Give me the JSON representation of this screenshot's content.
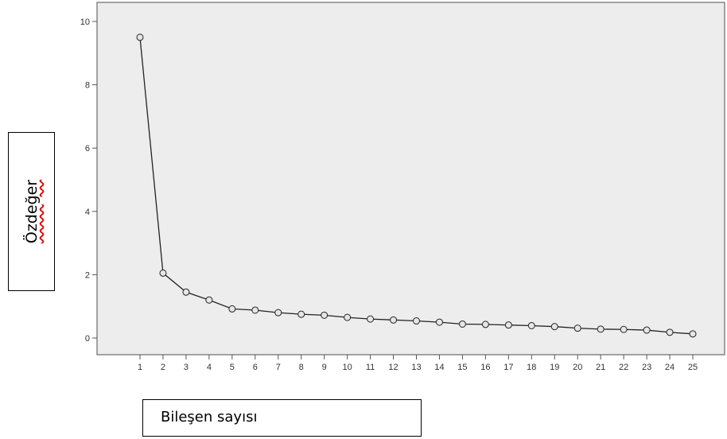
{
  "chart_data": {
    "type": "line",
    "ylabel": "Özdeğer",
    "xlabel": "Bileşen sayısı",
    "x": [
      1,
      2,
      3,
      4,
      5,
      6,
      7,
      8,
      9,
      10,
      11,
      12,
      13,
      14,
      15,
      16,
      17,
      18,
      19,
      20,
      21,
      22,
      23,
      24,
      25
    ],
    "y": [
      9.5,
      2.05,
      1.45,
      1.2,
      0.92,
      0.88,
      0.8,
      0.75,
      0.72,
      0.65,
      0.6,
      0.57,
      0.54,
      0.5,
      0.44,
      0.43,
      0.41,
      0.39,
      0.36,
      0.31,
      0.28,
      0.27,
      0.25,
      0.18,
      0.13
    ],
    "yticks": [
      "0",
      "2",
      "4",
      "6",
      "8",
      "10"
    ],
    "ylim": [
      0,
      10
    ],
    "xlim": [
      1,
      25
    ],
    "grid": false,
    "colors": {
      "background": "#ededed",
      "line": "#222222",
      "marker_fill": "#e6e6e6"
    }
  }
}
